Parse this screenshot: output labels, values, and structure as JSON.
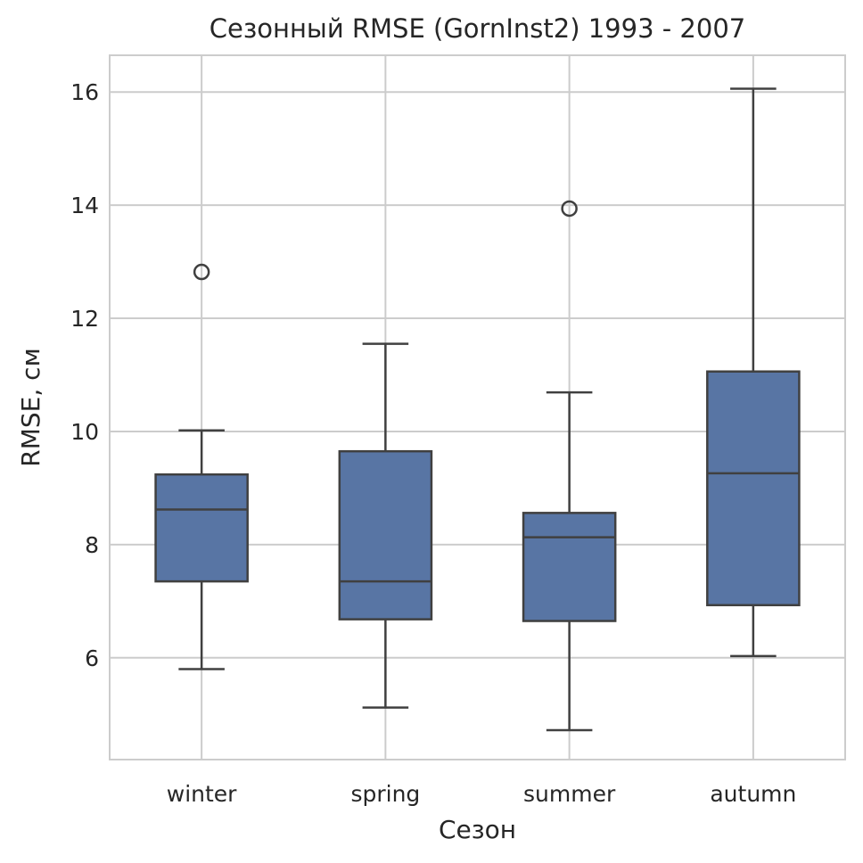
{
  "chart_data": {
    "type": "box",
    "title": "Сезонный RMSE (GornInst2) 1993 - 2007",
    "xlabel": "Сезон",
    "ylabel": "RMSE, см",
    "ylim": [
      4.2,
      16.65
    ],
    "yticks": [
      6,
      8,
      10,
      12,
      14,
      16
    ],
    "grid": true,
    "categories": [
      "winter",
      "spring",
      "summer",
      "autumn"
    ],
    "boxes": [
      {
        "category": "winter",
        "whisker_low": 5.8,
        "q1": 7.35,
        "median": 8.62,
        "q3": 9.24,
        "whisker_high": 10.02,
        "outliers": [
          12.82
        ]
      },
      {
        "category": "spring",
        "whisker_low": 5.12,
        "q1": 6.68,
        "median": 7.35,
        "q3": 9.65,
        "whisker_high": 11.55,
        "outliers": []
      },
      {
        "category": "summer",
        "whisker_low": 4.72,
        "q1": 6.65,
        "median": 8.13,
        "q3": 8.56,
        "whisker_high": 10.69,
        "outliers": [
          13.94
        ]
      },
      {
        "category": "autumn",
        "whisker_low": 6.03,
        "q1": 6.93,
        "median": 9.26,
        "q3": 11.06,
        "whisker_high": 16.06,
        "outliers": []
      }
    ],
    "colors": {
      "box_fill": "#5875a4",
      "line": "#404040",
      "grid": "#cccccc",
      "text": "#262626"
    }
  }
}
